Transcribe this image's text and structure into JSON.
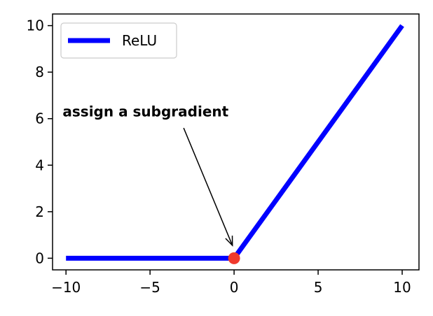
{
  "chart_data": {
    "type": "line",
    "title": "",
    "xlabel": "",
    "ylabel": "",
    "xlim": [
      -10.8,
      11.0
    ],
    "ylim": [
      -0.5,
      10.5
    ],
    "x_ticks": [
      -10,
      -5,
      0,
      5,
      10
    ],
    "x_tick_labels": [
      "−10",
      "−5",
      "0",
      "5",
      "10"
    ],
    "y_ticks": [
      0,
      2,
      4,
      6,
      8,
      10
    ],
    "y_tick_labels": [
      "0",
      "2",
      "4",
      "6",
      "8",
      "10"
    ],
    "grid": false,
    "legend_position": "top-left",
    "series": [
      {
        "name": "ReLU",
        "color": "#0000ff",
        "x": [
          -10,
          0,
          10
        ],
        "y": [
          0,
          0,
          10
        ]
      }
    ],
    "highlight_point": {
      "x": 0,
      "y": 0,
      "color": "#f03a2e"
    },
    "annotation": {
      "text": "assign a subgradient",
      "text_x": -10.2,
      "text_y": 6.1,
      "arrow_from": {
        "x": -3,
        "y": 5.6
      },
      "arrow_to": {
        "x": -0.1,
        "y": 0.55
      }
    }
  }
}
